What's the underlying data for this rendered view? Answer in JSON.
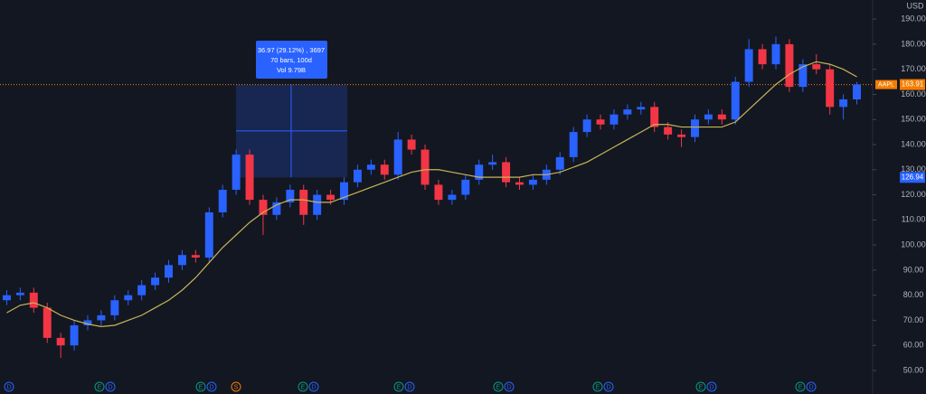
{
  "chart_data": {
    "type": "candlestick",
    "open": [
      78,
      80,
      81,
      75,
      63,
      60,
      68,
      70,
      72,
      78,
      80,
      84,
      87,
      92,
      96,
      95,
      113,
      122,
      136,
      118,
      112,
      117,
      122,
      112,
      120,
      118,
      125,
      130,
      132,
      128,
      142,
      138,
      124,
      118,
      120,
      126,
      132,
      133,
      125,
      124,
      126,
      130,
      135,
      145,
      150,
      148,
      152,
      154,
      155,
      147,
      144,
      143,
      150,
      152,
      150,
      165,
      178,
      172,
      180,
      163,
      172,
      170,
      155,
      158
    ],
    "high": [
      82,
      83,
      83,
      77,
      65,
      70,
      72,
      74,
      80,
      82,
      86,
      89,
      94,
      98,
      98,
      115,
      124,
      138,
      138,
      120,
      119,
      124,
      124,
      122,
      122,
      127,
      132,
      134,
      134,
      145,
      144,
      140,
      126,
      122,
      128,
      134,
      136,
      135,
      127,
      128,
      132,
      137,
      147,
      152,
      152,
      154,
      156,
      157,
      157,
      149,
      146,
      152,
      154,
      154,
      167,
      182,
      180,
      183,
      182,
      174,
      176,
      172,
      160,
      165
    ],
    "low": [
      76,
      78,
      73,
      61,
      55,
      58,
      66,
      68,
      70,
      76,
      78,
      82,
      85,
      90,
      93,
      93,
      111,
      120,
      116,
      104,
      110,
      115,
      108,
      110,
      116,
      116,
      123,
      128,
      126,
      126,
      136,
      122,
      116,
      116,
      118,
      124,
      130,
      123,
      122,
      122,
      124,
      128,
      133,
      143,
      146,
      146,
      150,
      152,
      145,
      142,
      139,
      141,
      148,
      148,
      148,
      163,
      170,
      170,
      161,
      161,
      168,
      152,
      150,
      156
    ],
    "close": [
      80,
      81,
      75,
      63,
      60,
      68,
      70,
      72,
      78,
      80,
      84,
      87,
      92,
      96,
      95,
      113,
      122,
      136,
      118,
      112,
      117,
      122,
      112,
      120,
      118,
      125,
      130,
      132,
      128,
      142,
      138,
      124,
      118,
      120,
      126,
      132,
      133,
      125,
      124,
      126,
      130,
      135,
      145,
      150,
      148,
      152,
      154,
      155,
      147,
      144,
      143,
      150,
      152,
      150,
      165,
      178,
      172,
      180,
      163,
      172,
      170,
      155,
      158,
      163.91
    ],
    "up_color": "#2962ff",
    "down_color": "#f23645",
    "moving_average": {
      "color": "#c9b458",
      "values": [
        73,
        76,
        77,
        75,
        72,
        70,
        68.5,
        67.5,
        68,
        70,
        72,
        75,
        78,
        82,
        87,
        93,
        99,
        104,
        109,
        113,
        116,
        118,
        118,
        117,
        117,
        119,
        121,
        123,
        125,
        127,
        129,
        130,
        130,
        129,
        128,
        127,
        127,
        127,
        127,
        128,
        128,
        129,
        131,
        133,
        136,
        139,
        142,
        145,
        148,
        148,
        147,
        147,
        147,
        147,
        149,
        154,
        159,
        164,
        168,
        171,
        173,
        172,
        170,
        167
      ]
    },
    "ylim": [
      46.4,
      197.6
    ],
    "yticks": [
      {
        "value": 50,
        "label": "50.00"
      },
      {
        "value": 60,
        "label": "60.00"
      },
      {
        "value": 70,
        "label": "70.00"
      },
      {
        "value": 80,
        "label": "80.00"
      },
      {
        "value": 90,
        "label": "90.00"
      },
      {
        "value": 100,
        "label": "100.00"
      },
      {
        "value": 110,
        "label": "110.00"
      },
      {
        "value": 120,
        "label": "120.00"
      },
      {
        "value": 130,
        "label": "130.00"
      },
      {
        "value": 140,
        "label": "140.00"
      },
      {
        "value": 150,
        "label": "150.00"
      },
      {
        "value": 160,
        "label": "160.00"
      },
      {
        "value": 170,
        "label": "170.00"
      },
      {
        "value": 180,
        "label": "180.00"
      },
      {
        "value": 190,
        "label": "190.00"
      }
    ],
    "currency": "USD",
    "last_price": {
      "symbol": "AAPL",
      "value": 163.91,
      "color": "#f57c00"
    },
    "measure": {
      "low": 126.94,
      "color": "#2962ff",
      "lines": [
        "36.97 (29.12%) , 3697",
        "70 bars, 100d",
        "Vol 9.79B"
      ]
    },
    "events": [
      {
        "label": "D",
        "color": "#2962ff"
      },
      {
        "label": "E",
        "color": "#089981"
      },
      {
        "label": "D",
        "color": "#2962ff"
      },
      {
        "label": "E",
        "color": "#089981"
      },
      {
        "label": "D",
        "color": "#2962ff"
      },
      {
        "label": "S",
        "color": "#f57c00"
      },
      {
        "label": "E",
        "color": "#089981"
      },
      {
        "label": "D",
        "color": "#2962ff"
      },
      {
        "label": "E",
        "color": "#089981"
      },
      {
        "label": "D",
        "color": "#2962ff"
      },
      {
        "label": "E",
        "color": "#089981"
      },
      {
        "label": "D",
        "color": "#2962ff"
      },
      {
        "label": "E",
        "color": "#089981"
      },
      {
        "label": "D",
        "color": "#2962ff"
      },
      {
        "label": "E",
        "color": "#089981"
      },
      {
        "label": "D",
        "color": "#2962ff"
      },
      {
        "label": "E",
        "color": "#089981"
      },
      {
        "label": "D",
        "color": "#2962ff"
      }
    ]
  }
}
